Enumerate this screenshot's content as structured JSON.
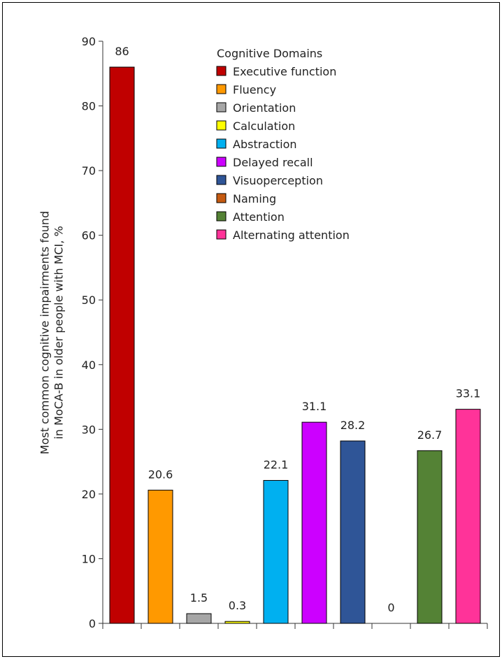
{
  "chart_data": {
    "type": "bar",
    "ylabel_lines": [
      "Most common cognitive impairments found",
      "in MoCA-B in older people with MCI, %"
    ],
    "ylim": [
      0,
      90
    ],
    "yticks": [
      0,
      10,
      20,
      30,
      40,
      50,
      60,
      70,
      80,
      90
    ],
    "grid": false,
    "legend": {
      "title": "Cognitive Domains",
      "placement": "top-right"
    },
    "series": [
      {
        "name": "Executive function",
        "value": 86,
        "label": "86",
        "color": "#c00000"
      },
      {
        "name": "Fluency",
        "value": 20.6,
        "label": "20.6",
        "color": "#ff9900"
      },
      {
        "name": "Orientation",
        "value": 1.5,
        "label": "1.5",
        "color": "#a6a6a6"
      },
      {
        "name": "Calculation",
        "value": 0.3,
        "label": "0.3",
        "color": "#ffff00"
      },
      {
        "name": "Abstraction",
        "value": 22.1,
        "label": "22.1",
        "color": "#00b0f0"
      },
      {
        "name": "Delayed recall",
        "value": 31.1,
        "label": "31.1",
        "color": "#cc00ff"
      },
      {
        "name": "Visuoperception",
        "value": 28.2,
        "label": "28.2",
        "color": "#2f5597"
      },
      {
        "name": "Naming",
        "value": 0,
        "label": "0",
        "color": "#c55a11"
      },
      {
        "name": "Attention",
        "value": 26.7,
        "label": "26.7",
        "color": "#548235"
      },
      {
        "name": "Alternating attention",
        "value": 33.1,
        "label": "33.1",
        "color": "#ff3399"
      }
    ]
  }
}
